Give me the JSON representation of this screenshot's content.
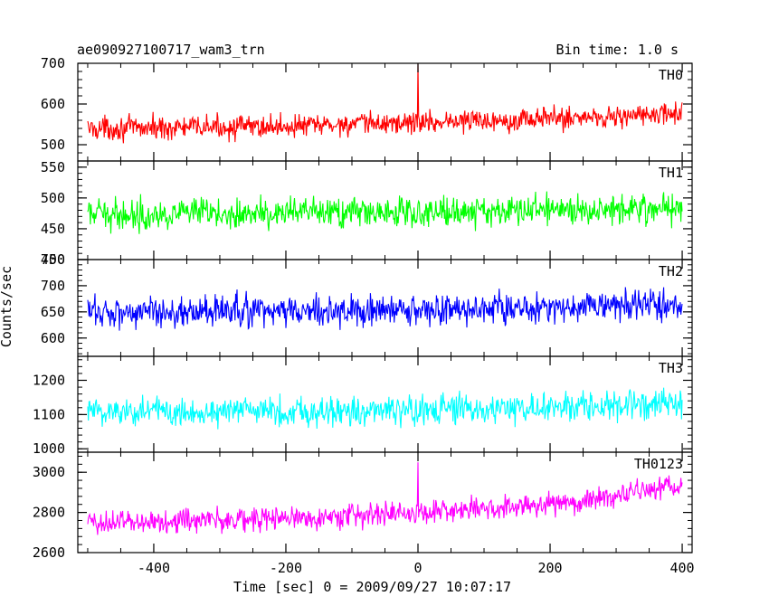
{
  "header": {
    "left": "ae090927100717_wam3_trn",
    "right": "Bin time: 1.0 s"
  },
  "ylabel": "Counts/sec",
  "xlabel": "Time [sec] 0 = 2009/09/27 10:07:17",
  "chart_data": [
    {
      "type": "line",
      "name": "TH0",
      "color": "#ff0000",
      "xlim": [
        -515,
        415
      ],
      "ylim": [
        460,
        700
      ],
      "yticks": [
        500,
        600,
        700
      ],
      "xticks": [
        -400,
        -200,
        0,
        200,
        400
      ],
      "x_range": [
        -500,
        400
      ],
      "trend": [
        [
          -500,
          540
        ],
        [
          -200,
          545
        ],
        [
          0,
          555
        ],
        [
          200,
          565
        ],
        [
          400,
          575
        ]
      ],
      "noise_amplitude": 35,
      "spikes": [
        [
          0,
          700
        ]
      ]
    },
    {
      "type": "line",
      "name": "TH1",
      "color": "#00ff00",
      "xlim": [
        -515,
        415
      ],
      "ylim": [
        400,
        560
      ],
      "yticks": [
        400,
        450,
        500,
        550
      ],
      "xticks": [
        -400,
        -200,
        0,
        200,
        400
      ],
      "x_range": [
        -500,
        400
      ],
      "trend": [
        [
          -500,
          473
        ],
        [
          0,
          477
        ],
        [
          400,
          485
        ]
      ],
      "noise_amplitude": 30,
      "spikes": []
    },
    {
      "type": "line",
      "name": "TH2",
      "color": "#0000ff",
      "xlim": [
        -515,
        415
      ],
      "ylim": [
        565,
        750
      ],
      "yticks": [
        600,
        650,
        700,
        750
      ],
      "xticks": [
        -400,
        -200,
        0,
        200,
        400
      ],
      "x_range": [
        -500,
        400
      ],
      "trend": [
        [
          -500,
          650
        ],
        [
          0,
          652
        ],
        [
          400,
          665
        ]
      ],
      "noise_amplitude": 38,
      "spikes": []
    },
    {
      "type": "line",
      "name": "TH3",
      "color": "#00ffff",
      "xlim": [
        -515,
        415
      ],
      "ylim": [
        990,
        1270
      ],
      "yticks": [
        1000,
        1100,
        1200
      ],
      "xticks": [
        -400,
        -200,
        0,
        200,
        400
      ],
      "x_range": [
        -500,
        400
      ],
      "trend": [
        [
          -500,
          1110
        ],
        [
          0,
          1110
        ],
        [
          400,
          1130
        ]
      ],
      "noise_amplitude": 55,
      "spikes": []
    },
    {
      "type": "line",
      "name": "TH0123",
      "color": "#ff00ff",
      "xlim": [
        -515,
        415
      ],
      "ylim": [
        2600,
        3100
      ],
      "yticks": [
        2600,
        2800,
        3000
      ],
      "xticks": [
        -400,
        -200,
        0,
        200,
        400
      ],
      "x_range": [
        -500,
        400
      ],
      "trend": [
        [
          -500,
          2750
        ],
        [
          -200,
          2770
        ],
        [
          0,
          2800
        ],
        [
          200,
          2840
        ],
        [
          400,
          2930
        ]
      ],
      "noise_amplitude": 75,
      "spikes": [
        [
          0,
          3050
        ]
      ]
    }
  ]
}
